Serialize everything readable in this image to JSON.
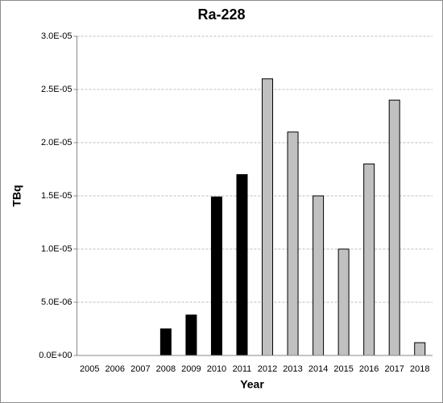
{
  "chart_data": {
    "type": "bar",
    "title": "Ra-228",
    "x_label": "Year",
    "y_label": "TBq",
    "categories": [
      "2005",
      "2006",
      "2007",
      "2008",
      "2009",
      "2010",
      "2011",
      "2012",
      "2013",
      "2014",
      "2015",
      "2016",
      "2017",
      "2018"
    ],
    "values": [
      null,
      null,
      null,
      2.5e-06,
      3.8e-06,
      1.49e-05,
      1.7e-05,
      2.6e-05,
      2.1e-05,
      1.5e-05,
      1e-05,
      1.8e-05,
      2.4e-05,
      1.2e-06
    ],
    "colors": [
      null,
      null,
      null,
      "#000000",
      "#000000",
      "#000000",
      "#000000",
      "#c0c0c0",
      "#c0c0c0",
      "#c0c0c0",
      "#c0c0c0",
      "#c0c0c0",
      "#c0c0c0",
      "#c0c0c0"
    ],
    "ylim": [
      0,
      3e-05
    ],
    "yticks": [
      {
        "value": 0,
        "label": "0.0E+00"
      },
      {
        "value": 5e-06,
        "label": "5.0E-06"
      },
      {
        "value": 1e-05,
        "label": "1.0E-05"
      },
      {
        "value": 1.5e-05,
        "label": "1.5E-05"
      },
      {
        "value": 2e-05,
        "label": "2.0E-05"
      },
      {
        "value": 2.5e-05,
        "label": "2.5E-05"
      },
      {
        "value": 3e-05,
        "label": "3.0E-05"
      }
    ],
    "grid": true
  }
}
